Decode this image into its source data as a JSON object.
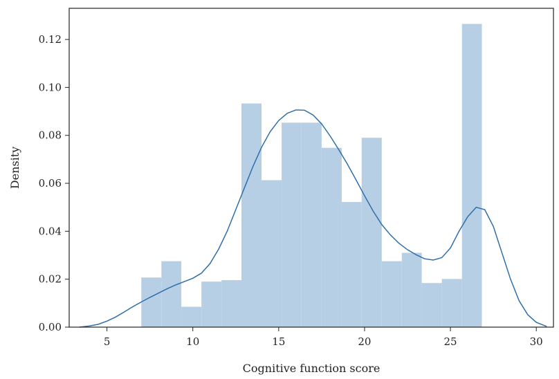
{
  "chart_data": {
    "type": "bar",
    "subtype": "histogram with density curve",
    "title": "",
    "xlabel": "Cognitive function score",
    "ylabel": "Density",
    "xlim": [
      2.8,
      31.0
    ],
    "ylim": [
      0.0,
      0.133
    ],
    "xticks": [
      5,
      10,
      15,
      20,
      25,
      30
    ],
    "yticks": [
      0.0,
      0.02,
      0.04,
      0.06,
      0.08,
      0.1,
      0.12
    ],
    "ytick_labels": [
      "0.00",
      "0.02",
      "0.04",
      "0.06",
      "0.08",
      "0.10",
      "0.12"
    ],
    "grid": false,
    "legend": "none",
    "bar_color": "#b7cfe5",
    "line_color": "#2f6ea8",
    "histogram": [
      {
        "x0": 7.0,
        "x1": 8.17,
        "density": 0.0207
      },
      {
        "x0": 8.17,
        "x1": 9.33,
        "density": 0.0275
      },
      {
        "x0": 9.33,
        "x1": 10.5,
        "density": 0.0085
      },
      {
        "x0": 10.5,
        "x1": 11.67,
        "density": 0.019
      },
      {
        "x0": 11.67,
        "x1": 12.83,
        "density": 0.0196
      },
      {
        "x0": 12.83,
        "x1": 14.0,
        "density": 0.0933
      },
      {
        "x0": 14.0,
        "x1": 15.17,
        "density": 0.0613
      },
      {
        "x0": 15.17,
        "x1": 16.33,
        "density": 0.0853
      },
      {
        "x0": 16.33,
        "x1": 17.5,
        "density": 0.0853
      },
      {
        "x0": 17.5,
        "x1": 18.67,
        "density": 0.0748
      },
      {
        "x0": 18.67,
        "x1": 19.83,
        "density": 0.0522
      },
      {
        "x0": 19.83,
        "x1": 21.0,
        "density": 0.079
      },
      {
        "x0": 21.0,
        "x1": 22.17,
        "density": 0.0275
      },
      {
        "x0": 22.17,
        "x1": 23.33,
        "density": 0.031
      },
      {
        "x0": 23.33,
        "x1": 24.5,
        "density": 0.0184
      },
      {
        "x0": 24.5,
        "x1": 25.67,
        "density": 0.0201
      },
      {
        "x0": 25.67,
        "x1": 26.83,
        "density": 0.1265
      }
    ],
    "density_curve": {
      "x": [
        3.4,
        4.0,
        4.5,
        5.0,
        5.5,
        6.0,
        6.5,
        7.0,
        7.5,
        8.0,
        8.5,
        9.0,
        9.5,
        10.0,
        10.5,
        11.0,
        11.5,
        12.0,
        12.5,
        13.0,
        13.5,
        14.0,
        14.5,
        15.0,
        15.5,
        16.0,
        16.5,
        17.0,
        17.5,
        18.0,
        18.5,
        19.0,
        19.5,
        20.0,
        20.5,
        21.0,
        21.5,
        22.0,
        22.5,
        23.0,
        23.5,
        24.0,
        24.5,
        25.0,
        25.5,
        26.0,
        26.5,
        27.0,
        27.5,
        28.0,
        28.5,
        29.0,
        29.5,
        30.0,
        30.6
      ],
      "y": [
        0.0,
        0.0005,
        0.0012,
        0.0025,
        0.0042,
        0.0063,
        0.0085,
        0.0105,
        0.0124,
        0.0142,
        0.016,
        0.0176,
        0.019,
        0.0204,
        0.0225,
        0.0265,
        0.0325,
        0.04,
        0.049,
        0.058,
        0.067,
        0.075,
        0.0815,
        0.0862,
        0.0892,
        0.0906,
        0.0905,
        0.0885,
        0.0848,
        0.0797,
        0.074,
        0.068,
        0.0615,
        0.0548,
        0.0484,
        0.0428,
        0.0385,
        0.035,
        0.0323,
        0.0302,
        0.0285,
        0.028,
        0.029,
        0.033,
        0.04,
        0.046,
        0.05,
        0.049,
        0.042,
        0.031,
        0.02,
        0.011,
        0.0052,
        0.002,
        0.0003
      ]
    }
  }
}
